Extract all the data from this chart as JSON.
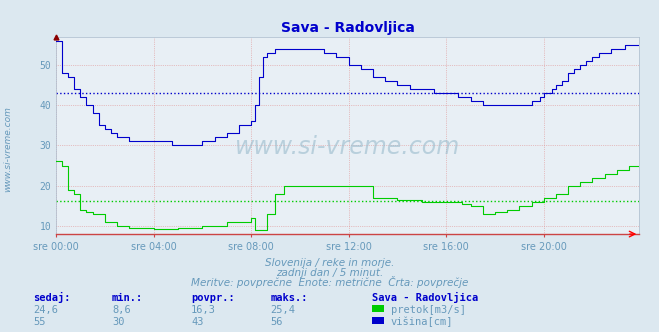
{
  "title": "Sava - Radovljica",
  "bg_color": "#dce8f0",
  "plot_bg_color": "#e8eff5",
  "x_labels": [
    "sre 00:00",
    "sre 04:00",
    "sre 08:00",
    "sre 12:00",
    "sre 16:00",
    "sre 20:00"
  ],
  "x_ticks": [
    0,
    48,
    96,
    144,
    192,
    240
  ],
  "total_points": 288,
  "ylim": [
    8,
    57
  ],
  "yticks": [
    10,
    20,
    30,
    40,
    50
  ],
  "pretok_color": "#00cc00",
  "visina_color": "#0000cc",
  "avg_pretok": 16.3,
  "avg_visina": 43,
  "subtitle1": "Slovenija / reke in morje.",
  "subtitle2": "zadnji dan / 5 minut.",
  "subtitle3": "Meritve: povprečne  Enote: metrične  Črta: povprečje",
  "text_color": "#6699bb",
  "label_header": "Sava - Radovljica",
  "col_sedaj": "sedaj:",
  "col_min": "min.:",
  "col_povpr": "povpr.:",
  "col_maks": "maks.:",
  "pretok_sedaj": "24,6",
  "pretok_min": "8,6",
  "pretok_povpr": "16,3",
  "pretok_maks": "25,4",
  "visina_sedaj": "55",
  "visina_min": "30",
  "visina_povpr": "43",
  "visina_maks": "56",
  "legend_pretok": "pretok[m3/s]",
  "legend_visina": "višina[cm]",
  "watermark": "www.si-vreme.com"
}
